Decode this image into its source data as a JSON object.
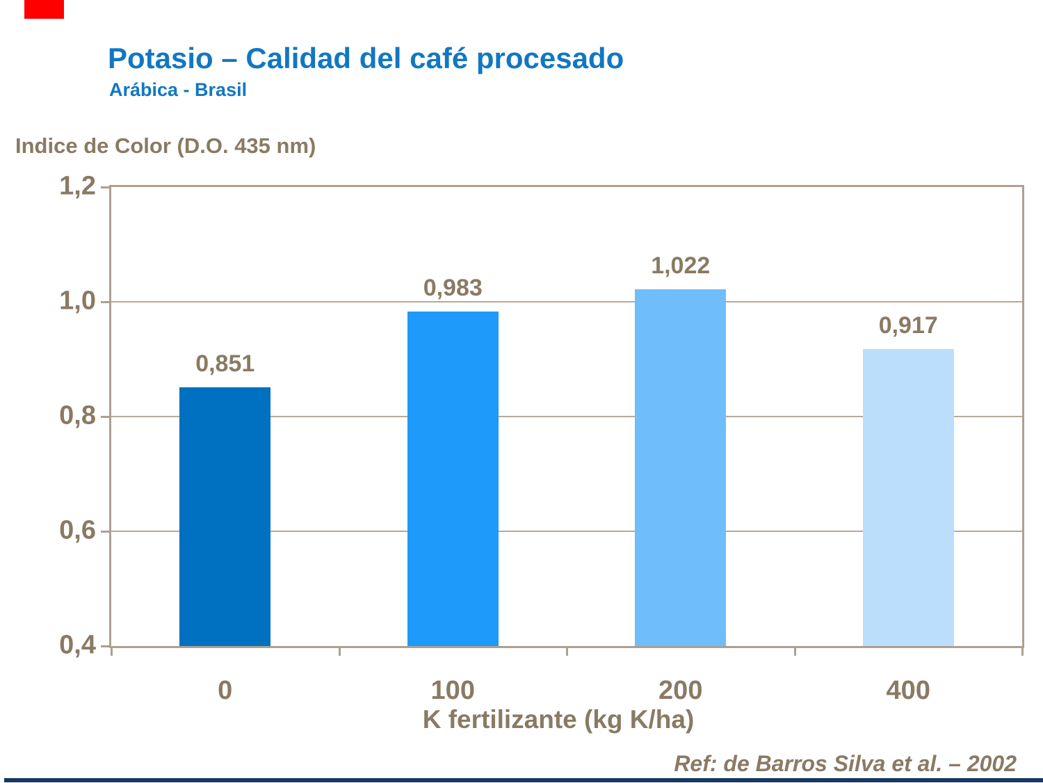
{
  "slide": {
    "title": "Potasio – Calidad del café procesado",
    "subtitle": "Arábica - Brasil",
    "reference": "Ref: de Barros Silva et al. – 2002",
    "title_color": "#1277C2",
    "red_accent_color": "#FF0000",
    "bottom_bar_color": "#17375E"
  },
  "chart_data": {
    "type": "bar",
    "title": "Indice de Color (D.O. 435 nm)",
    "xlabel": "K fertilizante (kg K/ha)",
    "ylabel": "Indice de Color (D.O. 435 nm)",
    "categories": [
      "0",
      "100",
      "200",
      "400"
    ],
    "values": [
      0.851,
      0.983,
      1.022,
      0.917
    ],
    "value_labels": [
      "0,851",
      "0,983",
      "1,022",
      "0,917"
    ],
    "bar_colors": [
      "#0070C0",
      "#1E9BFA",
      "#6FBDFB",
      "#BADEFB"
    ],
    "ylim": [
      0.4,
      1.2
    ],
    "yticks": [
      1.2,
      1.0,
      0.8,
      0.6,
      0.4
    ],
    "ytick_labels": [
      "1,2",
      "1,0",
      "0,8",
      "0,6",
      "0,4"
    ],
    "grid": true,
    "legend": false,
    "text_color": "#8A7A63",
    "frame_color": "#ACA091",
    "gridline_color": "#B5A999"
  }
}
